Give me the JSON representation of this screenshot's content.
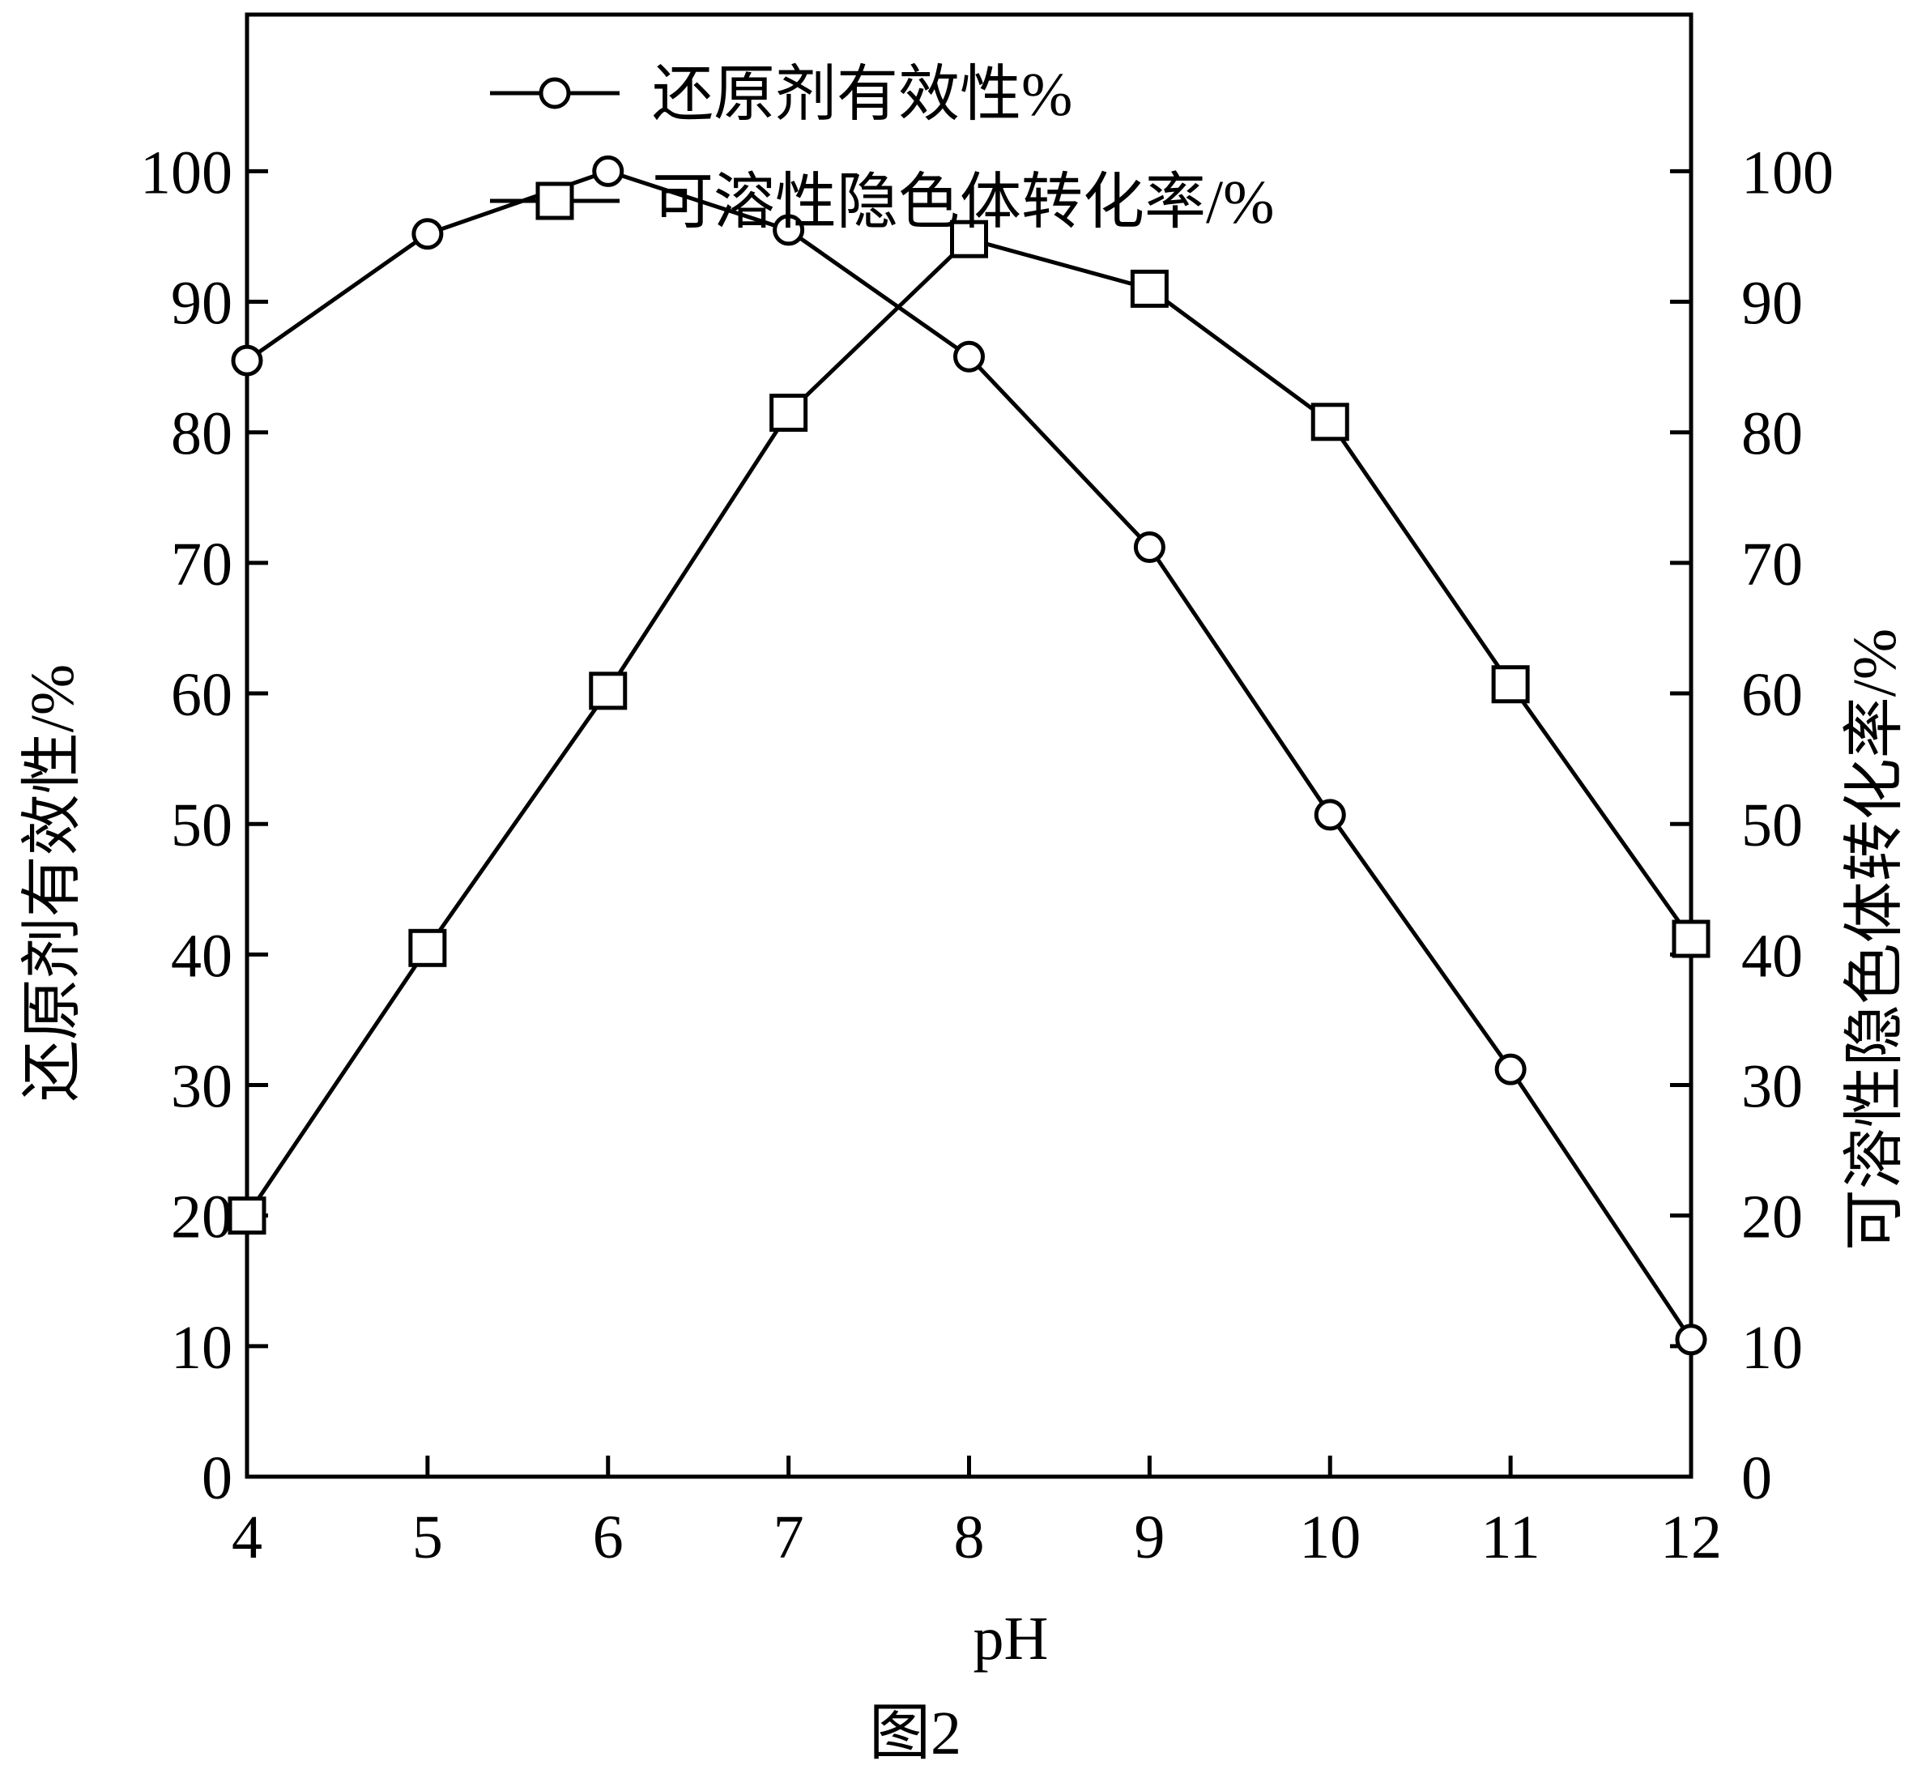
{
  "chart_data": {
    "type": "line",
    "title": "",
    "xlabel": "pH",
    "ylabel_left": "还原剂有效性/%",
    "ylabel_right": "可溶性隐色体转化率/%",
    "caption": "图2",
    "xlim": [
      4,
      12
    ],
    "ylim_left": [
      0,
      100
    ],
    "ylim_right": [
      0,
      100
    ],
    "x_ticks": [
      4,
      5,
      6,
      7,
      8,
      9,
      10,
      11,
      12
    ],
    "y_ticks_left": [
      0,
      10,
      20,
      30,
      40,
      50,
      60,
      70,
      80,
      90,
      100
    ],
    "y_ticks_right": [
      0,
      10,
      20,
      30,
      40,
      50,
      60,
      70,
      80,
      90,
      100
    ],
    "grid": false,
    "legend_position": "top-center",
    "colors": {
      "line": "#000000",
      "marker_fill": "#ffffff",
      "background": "#ffffff"
    },
    "series": [
      {
        "name": "还原剂有效性%",
        "axis": "left",
        "marker": "circle",
        "x": [
          4,
          5,
          6,
          7,
          8,
          9,
          10,
          11,
          12
        ],
        "y": [
          85.5,
          95.2,
          100,
          95.5,
          85.8,
          71.2,
          50.7,
          31.2,
          10.5
        ]
      },
      {
        "name": "可溶性隐色体转化率/%",
        "axis": "right",
        "marker": "square",
        "x": [
          4,
          5,
          6,
          7,
          8,
          9,
          10,
          11,
          12
        ],
        "y": [
          20,
          40.5,
          60.2,
          81.5,
          94.8,
          91,
          80.8,
          60.7,
          41.2
        ]
      }
    ]
  }
}
